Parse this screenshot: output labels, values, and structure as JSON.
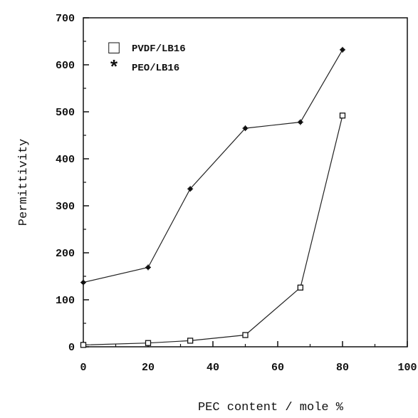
{
  "chart_data": {
    "type": "line",
    "xlabel": "PEC content / mole %",
    "ylabel": "Permittivity",
    "xlim": [
      0,
      100
    ],
    "ylim": [
      0,
      700
    ],
    "xticks": [
      0,
      20,
      40,
      60,
      80,
      100
    ],
    "yticks": [
      0,
      100,
      200,
      300,
      400,
      500,
      600,
      700
    ],
    "grid": false,
    "legend_position": "top-left",
    "series": [
      {
        "name": "PVDF/LB16",
        "marker": "open-square",
        "x": [
          0,
          20,
          33,
          50,
          67,
          80
        ],
        "y": [
          4,
          8,
          13,
          25,
          126,
          492
        ]
      },
      {
        "name": "PEO/LB16",
        "marker": "asterisk",
        "x": [
          0,
          20,
          33,
          50,
          67,
          80
        ],
        "y": [
          137,
          169,
          336,
          465,
          478,
          632
        ]
      }
    ],
    "legend_markers": [
      "□",
      "*"
    ]
  }
}
